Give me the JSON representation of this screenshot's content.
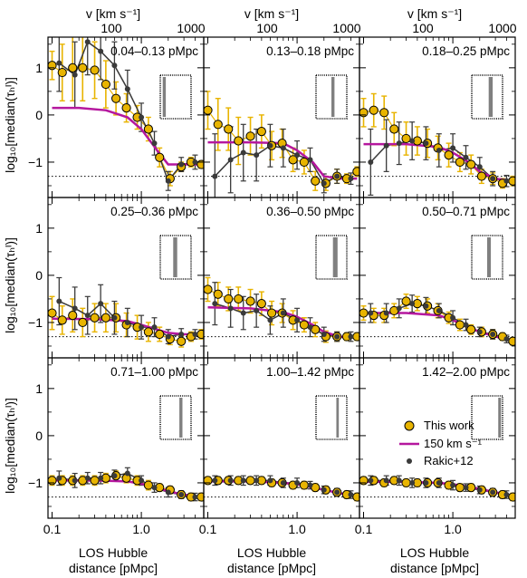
{
  "figure": {
    "top_axis_label": "v [km s⁻¹]",
    "top_ticks": [
      "100",
      "1000"
    ],
    "bottom_ticks": [
      "0.1",
      "1.0"
    ],
    "bottom_axis_label_line1": "LOS Hubble",
    "bottom_axis_label_line2": "distance [pMpc]",
    "left_axis_label": "log₁₀[median(τₕᴵ)]",
    "left_ticks": [
      "1",
      "0",
      "−1"
    ]
  },
  "legend": {
    "this_work": "This work",
    "model": "150 km s⁻¹",
    "rakic": "Rakic+12"
  },
  "colors": {
    "this_work_fill": "#e8b400",
    "this_work_error": "#e8b400",
    "rakic": "#3a3a3a",
    "model": "#b5179e",
    "floor": "#000000"
  },
  "chart_data": {
    "type": "scatter",
    "xscale": "log",
    "xlim": [
      0.09,
      5.0
    ],
    "ylim": [
      -1.75,
      1.65
    ],
    "floor_level": -1.3,
    "grid": false,
    "legend_location": "lower-right panel",
    "panels": [
      {
        "label": "0.04–0.13 pMpc",
        "inset_band": [
          0.08,
          0.18
        ],
        "this_work": {
          "x": [
            0.1,
            0.13,
            0.17,
            0.22,
            0.3,
            0.4,
            0.52,
            0.68,
            0.9,
            1.2,
            1.6,
            2.1,
            2.8,
            3.6,
            4.7
          ],
          "y": [
            1.05,
            0.9,
            1.0,
            1.0,
            0.95,
            0.65,
            0.35,
            0.15,
            -0.05,
            -0.3,
            -0.9,
            -1.35,
            -1.1,
            -1.0,
            -1.05
          ],
          "err": [
            0.3,
            0.6,
            0.7,
            0.7,
            0.6,
            0.5,
            0.35,
            0.3,
            0.25,
            0.25,
            0.2,
            0.15,
            0.1,
            0.1,
            0.08
          ]
        },
        "rakic": {
          "x": [
            0.12,
            0.18,
            0.25,
            0.35,
            0.5,
            0.7,
            1.0,
            1.4,
            2.0,
            2.8,
            4.0
          ],
          "y": [
            1.1,
            0.85,
            1.55,
            1.35,
            1.05,
            0.55,
            -0.05,
            -0.6,
            -1.4,
            -1.05,
            -1.0
          ],
          "err": [
            0.6,
            0.7,
            0.7,
            0.6,
            0.5,
            0.4,
            0.3,
            0.25,
            0.2,
            0.15,
            0.15
          ]
        },
        "model": {
          "x": [
            0.1,
            0.2,
            0.4,
            0.7,
            1.0,
            1.5,
            2.0,
            3.0,
            4.7
          ],
          "y": [
            0.15,
            0.15,
            0.1,
            -0.05,
            -0.3,
            -0.75,
            -1.05,
            -1.05,
            -1.05
          ]
        }
      },
      {
        "label": "0.13–0.18 pMpc",
        "inset_band": [
          0.5,
          0.6
        ],
        "this_work": {
          "x": [
            0.1,
            0.13,
            0.17,
            0.22,
            0.3,
            0.4,
            0.52,
            0.68,
            0.9,
            1.2,
            1.6,
            2.1,
            2.8,
            3.6,
            4.7
          ],
          "y": [
            0.1,
            -0.2,
            -0.3,
            -0.55,
            -0.45,
            -0.35,
            -0.65,
            -0.6,
            -0.95,
            -1.0,
            -1.4,
            -1.45,
            -1.3,
            -1.35,
            -1.2
          ],
          "err": [
            0.4,
            0.55,
            0.45,
            0.5,
            0.4,
            0.35,
            0.3,
            0.3,
            0.25,
            0.25,
            0.2,
            0.15,
            0.15,
            0.1,
            0.1
          ]
        },
        "rakic": {
          "x": [
            0.12,
            0.18,
            0.25,
            0.35,
            0.5,
            0.7,
            1.0,
            1.4,
            2.0,
            2.8,
            4.0
          ],
          "y": [
            -1.3,
            -0.95,
            -0.8,
            -0.85,
            -0.65,
            -0.7,
            -0.85,
            -0.95,
            -1.45,
            -1.3,
            -1.35
          ],
          "err": [
            0.9,
            0.7,
            0.6,
            0.55,
            0.45,
            0.4,
            0.3,
            0.25,
            0.2,
            0.15,
            0.12
          ]
        },
        "model": {
          "x": [
            0.1,
            0.3,
            0.7,
            1.0,
            1.5,
            2.0,
            3.0,
            4.7
          ],
          "y": [
            -0.58,
            -0.58,
            -0.6,
            -0.75,
            -1.0,
            -1.3,
            -1.35,
            -1.35
          ]
        }
      },
      {
        "label": "0.18–0.25 pMpc",
        "inset_band": [
          0.55,
          0.68
        ],
        "this_work": {
          "x": [
            0.1,
            0.13,
            0.17,
            0.22,
            0.3,
            0.4,
            0.52,
            0.68,
            0.9,
            1.2,
            1.6,
            2.1,
            2.8,
            3.6,
            4.7
          ],
          "y": [
            0.05,
            0.1,
            0.05,
            -0.3,
            -0.5,
            -0.55,
            -0.6,
            -0.7,
            -0.85,
            -1.0,
            -1.05,
            -1.3,
            -1.35,
            -1.45,
            -1.4
          ],
          "err": [
            0.3,
            0.35,
            0.35,
            0.35,
            0.35,
            0.3,
            0.3,
            0.25,
            0.25,
            0.2,
            0.2,
            0.15,
            0.12,
            0.1,
            0.1
          ]
        },
        "rakic": {
          "x": [
            0.12,
            0.18,
            0.25,
            0.35,
            0.5,
            0.7,
            1.0,
            1.4,
            2.0,
            2.8,
            4.0
          ],
          "y": [
            -1.0,
            -0.65,
            -0.6,
            -0.55,
            -0.6,
            -0.75,
            -0.7,
            -0.9,
            -1.1,
            -1.35,
            -1.4
          ],
          "err": [
            0.7,
            0.55,
            0.45,
            0.4,
            0.35,
            0.35,
            0.3,
            0.25,
            0.2,
            0.15,
            0.12
          ]
        },
        "model": {
          "x": [
            0.1,
            0.3,
            0.7,
            1.0,
            1.5,
            2.0,
            3.0,
            4.7
          ],
          "y": [
            -0.62,
            -0.62,
            -0.68,
            -0.8,
            -1.0,
            -1.2,
            -1.35,
            -1.4
          ]
        }
      },
      {
        "label": "0.25–0.36 pMpc",
        "inset_band": [
          0.42,
          0.55
        ],
        "this_work": {
          "x": [
            0.1,
            0.13,
            0.17,
            0.22,
            0.3,
            0.4,
            0.52,
            0.68,
            0.9,
            1.2,
            1.6,
            2.1,
            2.8,
            3.6,
            4.7
          ],
          "y": [
            -0.8,
            -0.95,
            -0.85,
            -1.0,
            -0.9,
            -0.9,
            -0.9,
            -1.05,
            -1.1,
            -1.2,
            -1.25,
            -1.35,
            -1.4,
            -1.3,
            -1.25
          ],
          "err": [
            0.35,
            0.3,
            0.35,
            0.3,
            0.3,
            0.3,
            0.3,
            0.25,
            0.25,
            0.2,
            0.15,
            0.12,
            0.12,
            0.1,
            0.1
          ]
        },
        "rakic": {
          "x": [
            0.12,
            0.18,
            0.25,
            0.35,
            0.5,
            0.7,
            1.0,
            1.4,
            2.0,
            2.8,
            4.0
          ],
          "y": [
            -0.55,
            -0.7,
            -0.85,
            -0.6,
            -0.9,
            -1.0,
            -1.1,
            -1.1,
            -1.3,
            -1.25,
            -1.25
          ],
          "err": [
            0.5,
            0.45,
            0.4,
            0.4,
            0.35,
            0.3,
            0.25,
            0.2,
            0.15,
            0.12,
            0.1
          ]
        },
        "model": {
          "x": [
            0.1,
            0.3,
            0.7,
            1.0,
            1.5,
            2.0,
            3.0,
            4.7
          ],
          "y": [
            -0.92,
            -0.93,
            -0.97,
            -1.05,
            -1.15,
            -1.22,
            -1.25,
            -1.25
          ]
        }
      },
      {
        "label": "0.36–0.50 pMpc",
        "inset_band": [
          0.55,
          0.7
        ],
        "this_work": {
          "x": [
            0.1,
            0.13,
            0.17,
            0.22,
            0.3,
            0.4,
            0.52,
            0.68,
            0.9,
            1.2,
            1.6,
            2.1,
            2.8,
            3.6,
            4.7
          ],
          "y": [
            -0.3,
            -0.4,
            -0.5,
            -0.5,
            -0.55,
            -0.6,
            -0.8,
            -0.8,
            -0.95,
            -1.05,
            -1.15,
            -1.3,
            -1.3,
            -1.3,
            -1.3
          ],
          "err": [
            0.25,
            0.25,
            0.25,
            0.25,
            0.25,
            0.25,
            0.25,
            0.2,
            0.2,
            0.15,
            0.15,
            0.12,
            0.1,
            0.08,
            0.08
          ]
        },
        "rakic": {
          "x": [
            0.12,
            0.18,
            0.25,
            0.35,
            0.5,
            0.7,
            1.0,
            1.4,
            2.0,
            2.8,
            4.0
          ],
          "y": [
            -0.6,
            -0.7,
            -0.8,
            -0.75,
            -0.95,
            -0.8,
            -0.95,
            -1.1,
            -1.25,
            -1.3,
            -1.3
          ],
          "err": [
            0.45,
            0.4,
            0.35,
            0.35,
            0.3,
            0.3,
            0.25,
            0.2,
            0.15,
            0.1,
            0.1
          ]
        },
        "model": {
          "x": [
            0.1,
            0.3,
            0.7,
            1.0,
            1.5,
            2.0,
            3.0,
            4.7
          ],
          "y": [
            -0.68,
            -0.7,
            -0.78,
            -0.88,
            -1.05,
            -1.2,
            -1.3,
            -1.32
          ]
        }
      },
      {
        "label": "0.50–0.71 pMpc",
        "inset_band": [
          0.5,
          0.62
        ],
        "this_work": {
          "x": [
            0.1,
            0.13,
            0.17,
            0.22,
            0.3,
            0.4,
            0.52,
            0.68,
            0.9,
            1.2,
            1.6,
            2.1,
            2.8,
            3.6,
            4.7
          ],
          "y": [
            -0.8,
            -0.85,
            -0.85,
            -0.75,
            -0.55,
            -0.6,
            -0.65,
            -0.75,
            -0.9,
            -1.05,
            -1.15,
            -1.2,
            -1.25,
            -1.3,
            -1.4
          ],
          "err": [
            0.15,
            0.15,
            0.15,
            0.15,
            0.15,
            0.15,
            0.15,
            0.15,
            0.12,
            0.12,
            0.1,
            0.1,
            0.1,
            0.08,
            0.08
          ]
        },
        "rakic": {
          "x": [
            0.12,
            0.18,
            0.25,
            0.35,
            0.5,
            0.7,
            1.0,
            1.4,
            2.0,
            2.8,
            4.0
          ],
          "y": [
            -0.8,
            -0.8,
            -0.7,
            -0.6,
            -0.65,
            -0.75,
            -0.9,
            -1.05,
            -1.2,
            -1.25,
            -1.35
          ],
          "err": [
            0.2,
            0.2,
            0.2,
            0.18,
            0.18,
            0.15,
            0.15,
            0.12,
            0.1,
            0.1,
            0.08
          ]
        },
        "model": {
          "x": [
            0.1,
            0.3,
            0.7,
            1.0,
            1.5,
            2.0,
            3.0,
            4.7
          ],
          "y": [
            -0.8,
            -0.8,
            -0.85,
            -0.95,
            -1.1,
            -1.2,
            -1.3,
            -1.38
          ]
        }
      },
      {
        "label": "0.71–1.00 pMpc",
        "inset_band": [
          0.62,
          0.72
        ],
        "this_work": {
          "x": [
            0.1,
            0.13,
            0.17,
            0.22,
            0.3,
            0.4,
            0.52,
            0.68,
            0.9,
            1.2,
            1.6,
            2.1,
            2.8,
            3.6,
            4.7
          ],
          "y": [
            -0.95,
            -0.95,
            -0.95,
            -0.95,
            -0.95,
            -0.9,
            -0.85,
            -0.9,
            -0.95,
            -1.05,
            -1.1,
            -1.15,
            -1.25,
            -1.3,
            -1.3
          ],
          "err": [
            0.1,
            0.1,
            0.1,
            0.1,
            0.1,
            0.1,
            0.1,
            0.1,
            0.1,
            0.1,
            0.08,
            0.08,
            0.08,
            0.08,
            0.08
          ]
        },
        "rakic": {
          "x": [
            0.12,
            0.18,
            0.25,
            0.35,
            0.5,
            0.7,
            1.0,
            1.4,
            2.0,
            2.8,
            4.0
          ],
          "y": [
            -0.9,
            -0.95,
            -0.9,
            -0.9,
            -0.85,
            -0.8,
            -0.95,
            -1.1,
            -1.2,
            -1.25,
            -1.3
          ],
          "err": [
            0.15,
            0.15,
            0.12,
            0.12,
            0.12,
            0.12,
            0.1,
            0.1,
            0.1,
            0.08,
            0.08
          ]
        },
        "model": {
          "x": [
            0.1,
            0.3,
            0.7,
            1.0,
            1.5,
            2.0,
            3.0,
            4.7
          ],
          "y": [
            -0.95,
            -0.95,
            -0.97,
            -1.02,
            -1.1,
            -1.18,
            -1.25,
            -1.3
          ]
        }
      },
      {
        "label": "1.00–1.42 pMpc",
        "inset_band": [
          0.66,
          0.74
        ],
        "this_work": {
          "x": [
            0.1,
            0.13,
            0.17,
            0.22,
            0.3,
            0.4,
            0.52,
            0.68,
            0.9,
            1.2,
            1.6,
            2.1,
            2.8,
            3.6,
            4.7
          ],
          "y": [
            -0.95,
            -0.95,
            -0.95,
            -0.95,
            -0.95,
            -0.95,
            -1.0,
            -1.0,
            -1.05,
            -1.05,
            -1.1,
            -1.15,
            -1.2,
            -1.25,
            -1.3
          ],
          "err": [
            0.08,
            0.08,
            0.08,
            0.08,
            0.08,
            0.08,
            0.08,
            0.08,
            0.08,
            0.08,
            0.08,
            0.08,
            0.08,
            0.08,
            0.08
          ]
        },
        "rakic": {
          "x": [
            0.12,
            0.18,
            0.25,
            0.35,
            0.5,
            0.7,
            1.0,
            1.4,
            2.0,
            2.8,
            4.0
          ],
          "y": [
            -0.95,
            -0.95,
            -0.95,
            -0.95,
            -0.95,
            -1.0,
            -1.0,
            -1.05,
            -1.15,
            -1.2,
            -1.25
          ],
          "err": [
            0.1,
            0.1,
            0.1,
            0.1,
            0.1,
            0.1,
            0.1,
            0.08,
            0.08,
            0.08,
            0.08
          ]
        },
        "model": {
          "x": [
            0.1,
            0.3,
            0.7,
            1.0,
            1.5,
            2.0,
            3.0,
            4.7
          ],
          "y": [
            -0.97,
            -0.97,
            -1.0,
            -1.03,
            -1.1,
            -1.15,
            -1.22,
            -1.28
          ]
        }
      },
      {
        "label": "1.42–2.00 pMpc",
        "inset_band": [
          0.86,
          0.95
        ],
        "this_work": {
          "x": [
            0.1,
            0.13,
            0.17,
            0.22,
            0.3,
            0.4,
            0.52,
            0.68,
            0.9,
            1.2,
            1.6,
            2.1,
            2.8,
            3.6,
            4.7
          ],
          "y": [
            -0.95,
            -0.95,
            -1.0,
            -0.95,
            -1.0,
            -1.0,
            -1.0,
            -1.0,
            -1.05,
            -1.1,
            -1.1,
            -1.15,
            -1.2,
            -1.25,
            -1.3
          ],
          "err": [
            0.08,
            0.08,
            0.08,
            0.08,
            0.08,
            0.08,
            0.08,
            0.08,
            0.08,
            0.08,
            0.08,
            0.08,
            0.08,
            0.08,
            0.08
          ]
        },
        "rakic": {
          "x": [
            0.12,
            0.18,
            0.25,
            0.35,
            0.5,
            0.7,
            1.0,
            1.4,
            2.0,
            2.8,
            4.0
          ],
          "y": [
            -0.95,
            -0.95,
            -0.95,
            -1.0,
            -1.0,
            -1.0,
            -1.05,
            -1.1,
            -1.15,
            -1.2,
            -1.25
          ],
          "err": [
            0.1,
            0.1,
            0.1,
            0.1,
            0.1,
            0.1,
            0.1,
            0.08,
            0.08,
            0.08,
            0.08
          ]
        },
        "model": {
          "x": [
            0.1,
            0.3,
            0.7,
            1.0,
            1.5,
            2.0,
            3.0,
            4.7
          ],
          "y": [
            -0.98,
            -0.98,
            -1.0,
            -1.03,
            -1.08,
            -1.13,
            -1.2,
            -1.27
          ]
        }
      }
    ]
  }
}
